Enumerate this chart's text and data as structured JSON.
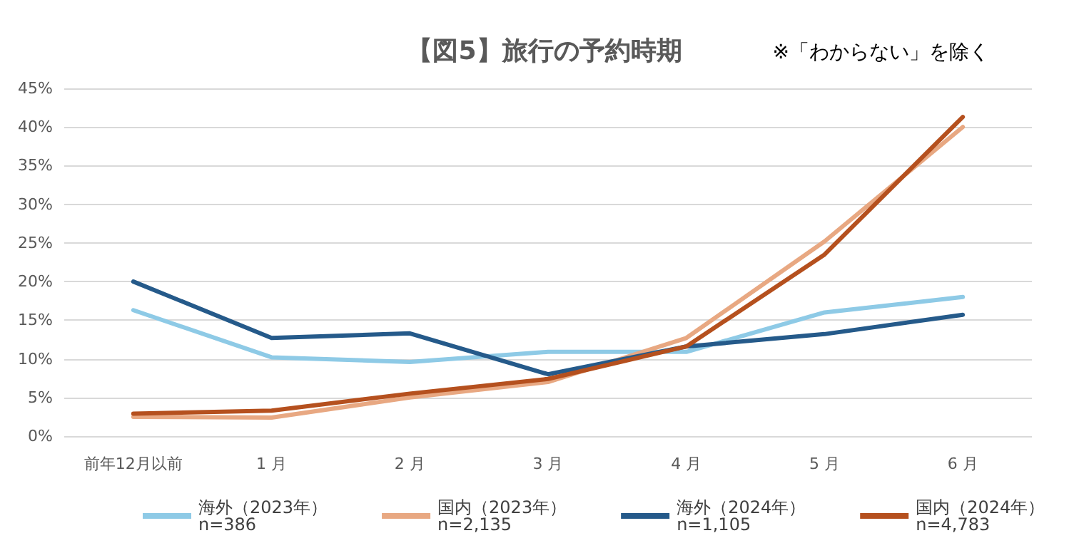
{
  "chart_data": {
    "type": "line",
    "title": "【図5】旅行の予約時期",
    "annotations": [
      "※「わからない」を除く"
    ],
    "categories": [
      "前年12月以前",
      "1 月",
      "2 月",
      "3 月",
      "4 月",
      "5 月",
      "6 月"
    ],
    "series": [
      {
        "name": "海外（2023年）\nn=386",
        "color": "#8ecae6",
        "values": [
          16.3,
          10.2,
          9.6,
          10.9,
          10.9,
          16.0,
          18.0
        ]
      },
      {
        "name": "国内（2023年）\nn=2,135",
        "color": "#e8a882",
        "values": [
          2.5,
          2.4,
          5.0,
          7.0,
          12.7,
          25.2,
          40.0
        ]
      },
      {
        "name": "海外（2024年）\nn=1,105",
        "color": "#255a8a",
        "values": [
          20.0,
          12.7,
          13.3,
          8.0,
          11.6,
          13.2,
          15.7
        ]
      },
      {
        "name": "国内（2024年）\nn=4,783",
        "color": "#b5501e",
        "values": [
          2.9,
          3.3,
          5.5,
          7.4,
          11.6,
          23.5,
          41.3
        ]
      }
    ],
    "ylim": [
      0,
      45
    ],
    "yticks": [
      {
        "value": 0,
        "label": "0%"
      },
      {
        "value": 5,
        "label": "5%"
      },
      {
        "value": 10,
        "label": "10%"
      },
      {
        "value": 15,
        "label": "15%"
      },
      {
        "value": 20,
        "label": "20%"
      },
      {
        "value": 25,
        "label": "25%"
      },
      {
        "value": 30,
        "label": "30%"
      },
      {
        "value": 35,
        "label": "35%"
      },
      {
        "value": 40,
        "label": "40%"
      },
      {
        "value": 45,
        "label": "45%"
      }
    ],
    "grid": "y",
    "legend": "bottom",
    "marker": "none",
    "line_style": "solid"
  }
}
